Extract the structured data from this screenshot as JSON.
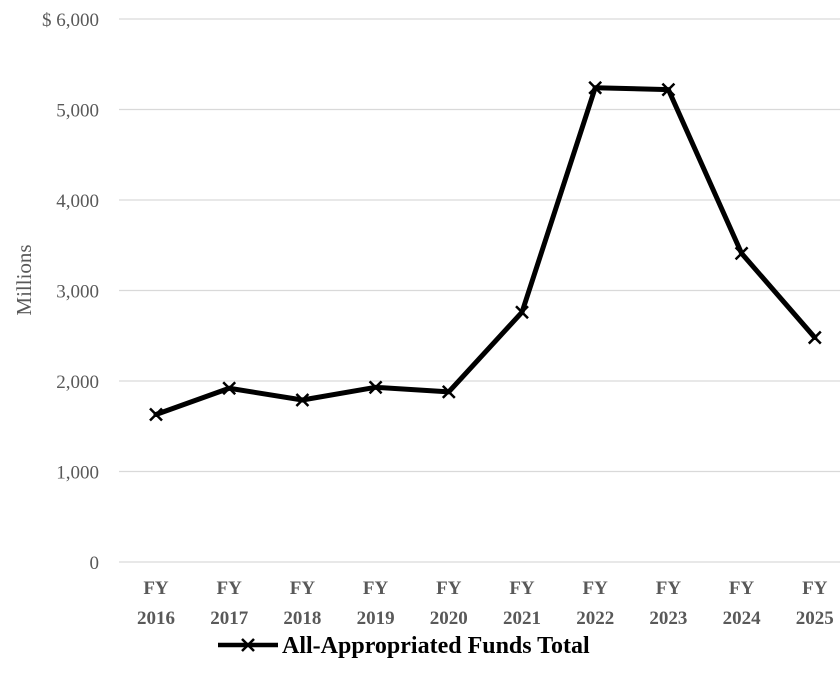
{
  "chart_data": {
    "type": "line",
    "title": "",
    "xlabel": "",
    "ylabel": "Millions",
    "categories": [
      [
        "FY",
        "2016"
      ],
      [
        "FY",
        "2017"
      ],
      [
        "FY",
        "2018"
      ],
      [
        "FY",
        "2019"
      ],
      [
        "FY",
        "2020"
      ],
      [
        "FY",
        "2021"
      ],
      [
        "FY",
        "2022"
      ],
      [
        "FY",
        "2023"
      ],
      [
        "FY",
        "2024"
      ],
      [
        "FY",
        "2025"
      ]
    ],
    "series": [
      {
        "name": "All-Appropriated Funds Total",
        "values": [
          1630,
          1920,
          1790,
          1930,
          1880,
          2760,
          5240,
          5220,
          3410,
          2480
        ],
        "color": "#000000",
        "marker": "x"
      }
    ],
    "ylim": [
      0,
      6000
    ],
    "y_ticks": [
      "0",
      "1,000",
      "2,000",
      "3,000",
      "4,000",
      "5,000",
      "$ 6,000"
    ],
    "grid": true,
    "legend_position": "bottom"
  }
}
